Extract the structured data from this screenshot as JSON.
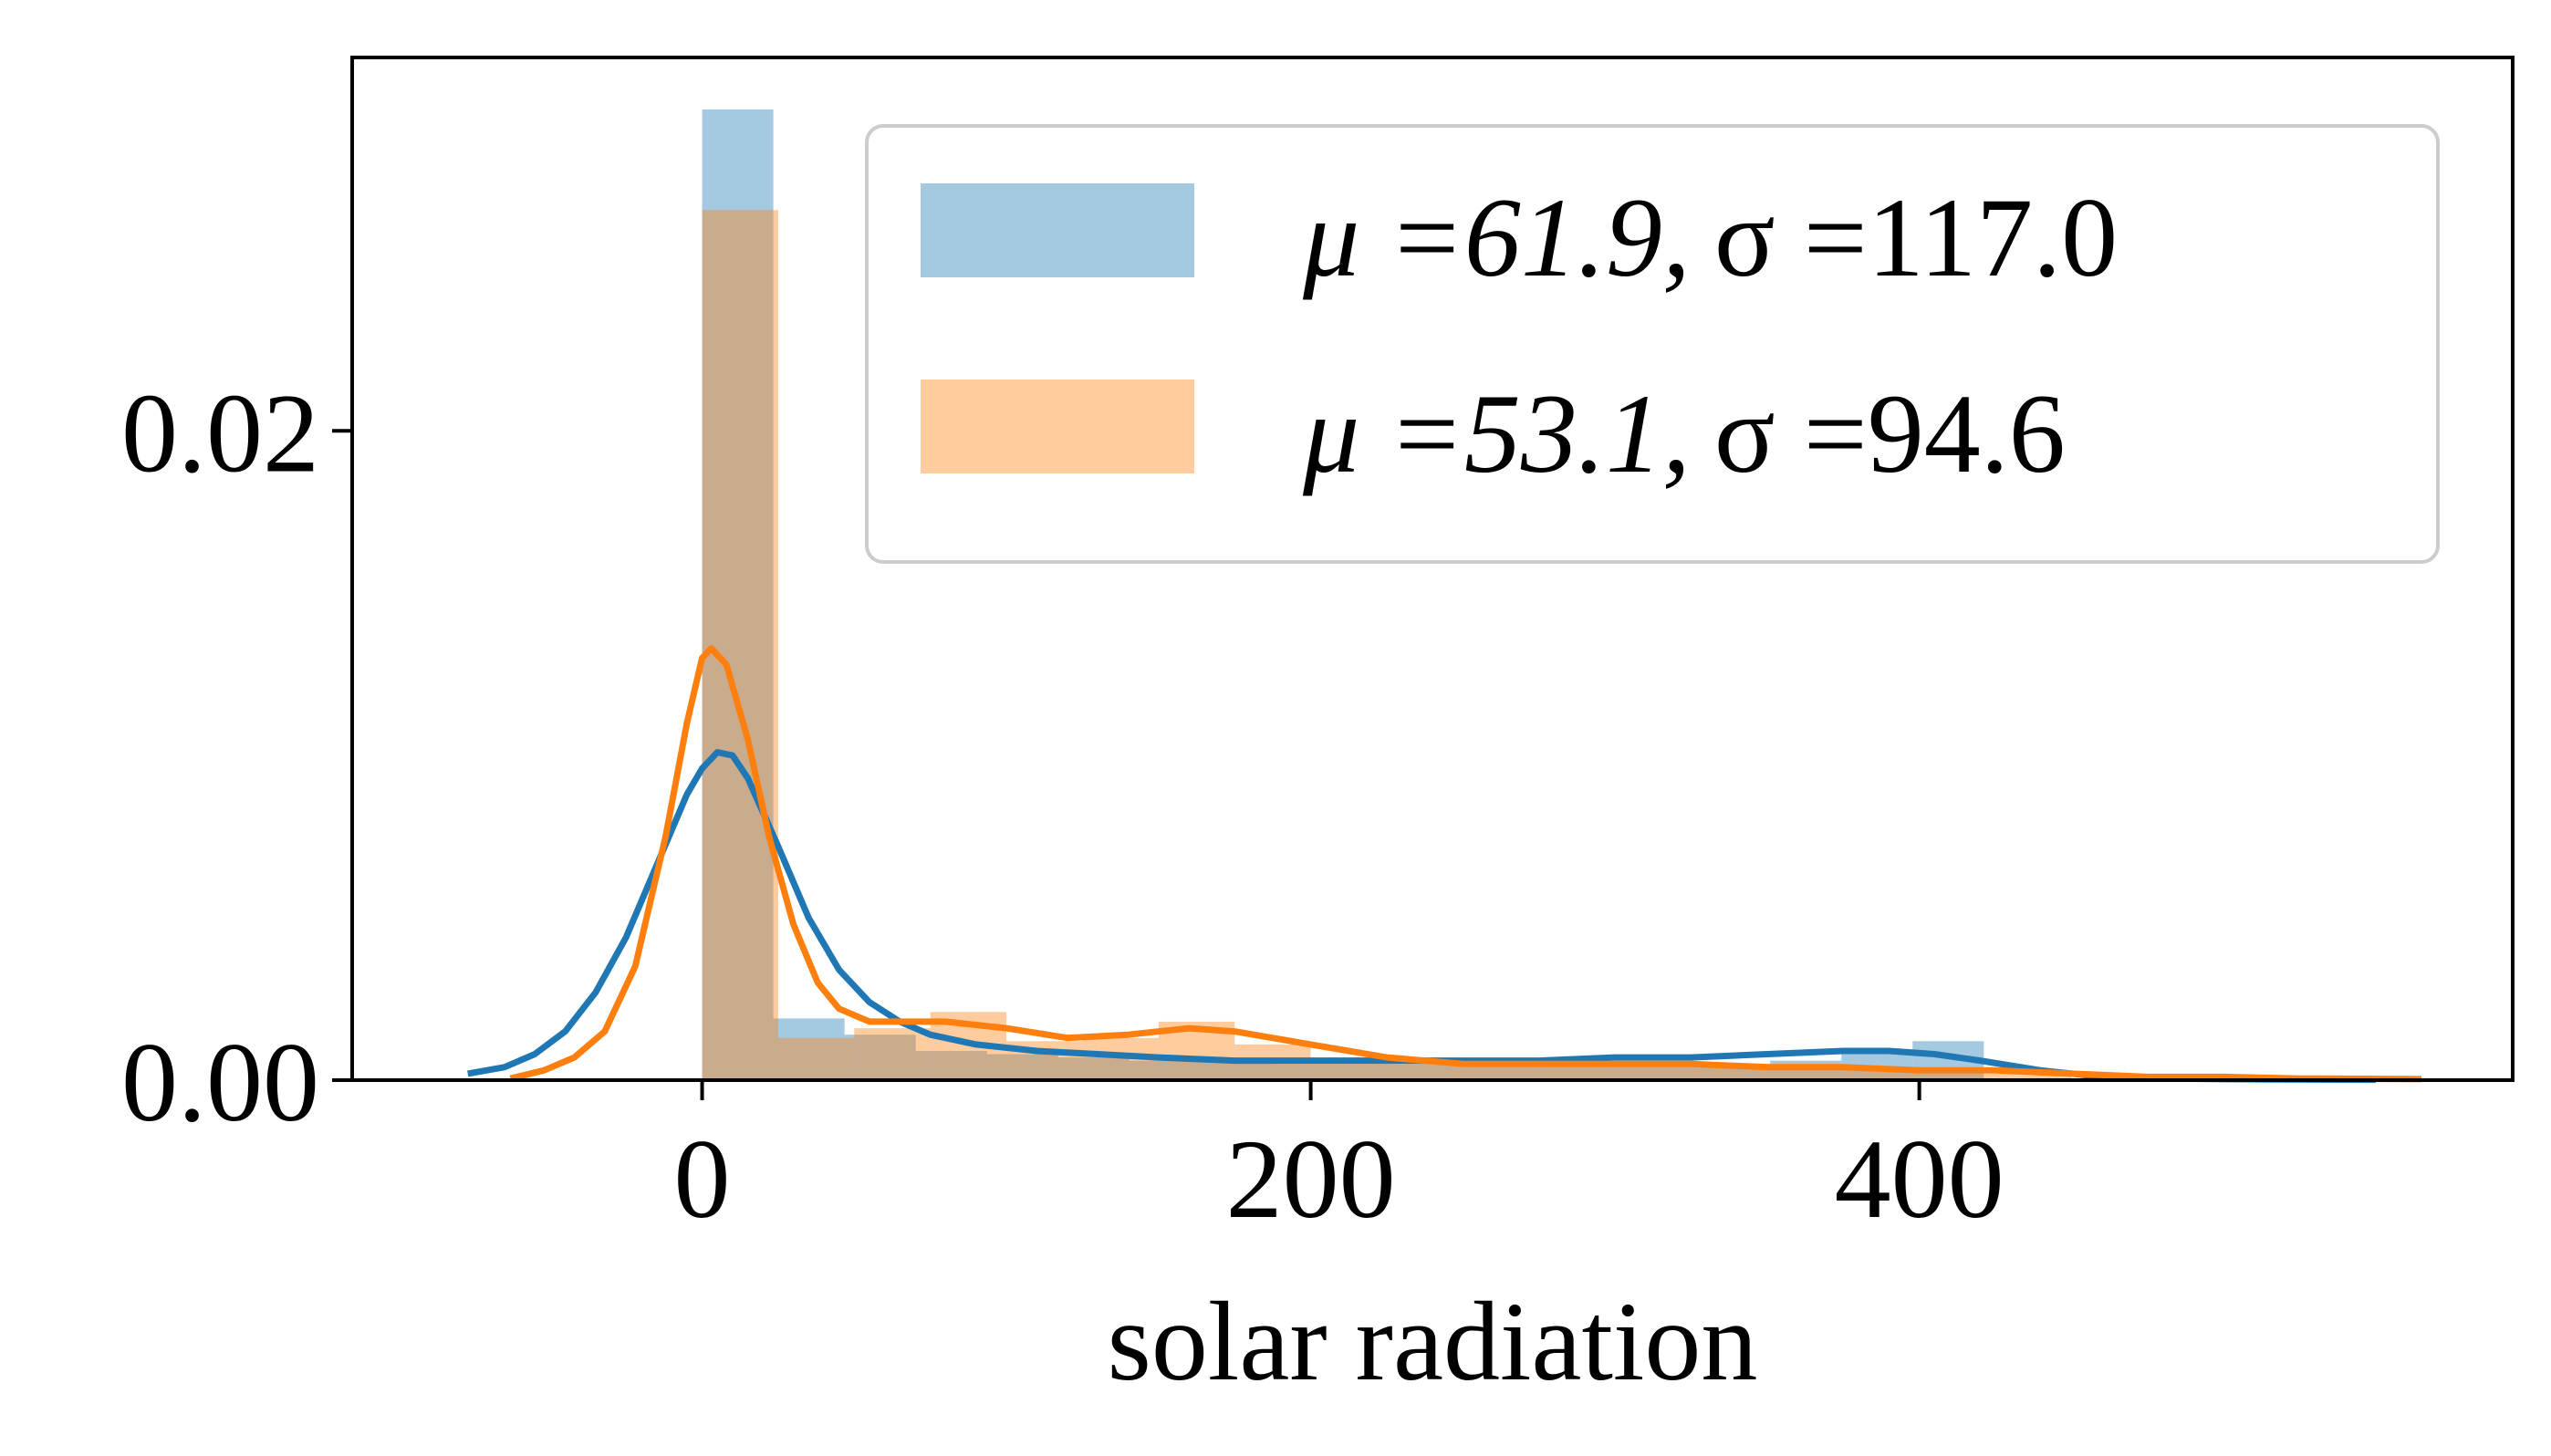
{
  "chart_data": {
    "type": "histogram+kde",
    "title": "",
    "xlabel": "solar radiation",
    "ylabel": "",
    "xlim": [
      -115,
      595
    ],
    "ylim": [
      0,
      0.0315
    ],
    "x_ticks": [
      0,
      200,
      400
    ],
    "x_tick_labels": [
      "0",
      "200",
      "400"
    ],
    "y_ticks": [
      0.0,
      0.02
    ],
    "y_tick_labels": [
      "0.00",
      "0.02"
    ],
    "grid": false,
    "legend_position": "top-right",
    "series": [
      {
        "name": "μ =61.9, σ =117.0",
        "legend_mu": "μ =61.9,",
        "legend_sigma": "σ =117.0",
        "color": "#1f77b4",
        "bin_width": 23.4,
        "bins": [
          {
            "x0": 0.0,
            "x1": 23.4,
            "density": 0.0299
          },
          {
            "x0": 23.4,
            "x1": 46.8,
            "density": 0.0019
          },
          {
            "x0": 46.8,
            "x1": 70.2,
            "density": 0.0014
          },
          {
            "x0": 70.2,
            "x1": 93.6,
            "density": 0.0009
          },
          {
            "x0": 93.6,
            "x1": 117.0,
            "density": 0.0008
          },
          {
            "x0": 117.0,
            "x1": 140.4,
            "density": 0.0007
          },
          {
            "x0": 140.4,
            "x1": 163.8,
            "density": 0.0006
          },
          {
            "x0": 163.8,
            "x1": 187.2,
            "density": 0.0006
          },
          {
            "x0": 187.2,
            "x1": 210.6,
            "density": 0.0005
          },
          {
            "x0": 210.6,
            "x1": 234.0,
            "density": 0.0005
          },
          {
            "x0": 234.0,
            "x1": 257.4,
            "density": 0.0005
          },
          {
            "x0": 257.4,
            "x1": 280.8,
            "density": 0.0005
          },
          {
            "x0": 280.8,
            "x1": 304.2,
            "density": 0.0005
          },
          {
            "x0": 304.2,
            "x1": 327.6,
            "density": 0.0005
          },
          {
            "x0": 327.6,
            "x1": 351.0,
            "density": 0.0005
          },
          {
            "x0": 351.0,
            "x1": 374.4,
            "density": 0.0006
          },
          {
            "x0": 374.4,
            "x1": 397.8,
            "density": 0.0008
          },
          {
            "x0": 397.8,
            "x1": 421.2,
            "density": 0.0012
          }
        ],
        "kde_x": [
          -77,
          -65,
          -55,
          -45,
          -35,
          -25,
          -15,
          -5,
          0,
          5,
          10,
          15,
          25,
          35,
          45,
          55,
          65,
          75,
          90,
          110,
          130,
          150,
          175,
          200,
          225,
          250,
          275,
          300,
          325,
          350,
          375,
          390,
          405,
          420,
          440,
          460,
          480,
          500,
          520,
          550
        ],
        "kde_y": [
          0.0002,
          0.0004,
          0.0008,
          0.0015,
          0.0027,
          0.0044,
          0.0066,
          0.0088,
          0.0096,
          0.0101,
          0.01,
          0.0093,
          0.0072,
          0.005,
          0.0034,
          0.0024,
          0.0018,
          0.0014,
          0.0011,
          0.0009,
          0.0008,
          0.0007,
          0.0006,
          0.0006,
          0.0006,
          0.0006,
          0.0006,
          0.0007,
          0.0007,
          0.0008,
          0.0009,
          0.0009,
          0.0008,
          0.0006,
          0.0003,
          0.0001,
          5e-05,
          3e-05,
          2e-05,
          1e-05
        ]
      },
      {
        "name": "μ =53.1, σ =94.6",
        "legend_mu": "μ =53.1,",
        "legend_sigma": "σ =94.6",
        "color": "#ff7f0e",
        "bin_width": 25.0,
        "bins": [
          {
            "x0": 0.0,
            "x1": 25.0,
            "density": 0.0268
          },
          {
            "x0": 25.0,
            "x1": 50.0,
            "density": 0.0013
          },
          {
            "x0": 50.0,
            "x1": 75.0,
            "density": 0.0016
          },
          {
            "x0": 75.0,
            "x1": 100.0,
            "density": 0.0021
          },
          {
            "x0": 100.0,
            "x1": 125.0,
            "density": 0.0012
          },
          {
            "x0": 125.0,
            "x1": 150.0,
            "density": 0.0013
          },
          {
            "x0": 150.0,
            "x1": 175.0,
            "density": 0.0018
          },
          {
            "x0": 175.0,
            "x1": 200.0,
            "density": 0.0011
          },
          {
            "x0": 200.0,
            "x1": 225.0,
            "density": 0.0006
          },
          {
            "x0": 225.0,
            "x1": 250.0,
            "density": 0.0005
          },
          {
            "x0": 250.0,
            "x1": 275.0,
            "density": 0.0004
          },
          {
            "x0": 275.0,
            "x1": 300.0,
            "density": 0.0005
          },
          {
            "x0": 300.0,
            "x1": 325.0,
            "density": 0.0004
          },
          {
            "x0": 325.0,
            "x1": 350.0,
            "density": 0.0004
          },
          {
            "x0": 350.0,
            "x1": 375.0,
            "density": 0.0003
          },
          {
            "x0": 375.0,
            "x1": 400.0,
            "density": 0.0003
          },
          {
            "x0": 400.0,
            "x1": 425.0,
            "density": 0.0002
          },
          {
            "x0": 425.0,
            "x1": 450.0,
            "density": 0.0002
          }
        ],
        "kde_x": [
          -63,
          -52,
          -42,
          -32,
          -22,
          -12,
          -5,
          0,
          3,
          8,
          15,
          22,
          30,
          38,
          45,
          55,
          65,
          80,
          100,
          120,
          140,
          160,
          175,
          200,
          225,
          250,
          275,
          300,
          325,
          350,
          375,
          400,
          425,
          450,
          475,
          500,
          525,
          565
        ],
        "kde_y": [
          5e-05,
          0.0003,
          0.0007,
          0.0015,
          0.0035,
          0.0075,
          0.011,
          0.013,
          0.0133,
          0.0128,
          0.0105,
          0.0075,
          0.0048,
          0.003,
          0.0022,
          0.0018,
          0.0018,
          0.0018,
          0.0016,
          0.0013,
          0.0014,
          0.0016,
          0.0015,
          0.0011,
          0.0007,
          0.0005,
          0.0005,
          0.0005,
          0.0005,
          0.0004,
          0.0004,
          0.0003,
          0.0003,
          0.0002,
          0.0001,
          0.0001,
          5e-05,
          3e-05
        ]
      }
    ]
  }
}
